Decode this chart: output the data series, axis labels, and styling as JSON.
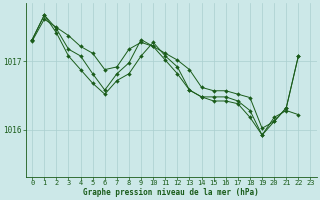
{
  "title": "Graphe pression niveau de la mer (hPa)",
  "background_color": "#cce8e8",
  "grid_color": "#aacfcf",
  "line_color": "#1a5c1a",
  "xlim": [
    -0.5,
    23.5
  ],
  "ylim": [
    1015.3,
    1017.85
  ],
  "yticks": [
    1016,
    1017
  ],
  "xticks": [
    0,
    1,
    2,
    3,
    4,
    5,
    6,
    7,
    8,
    9,
    10,
    11,
    12,
    13,
    14,
    15,
    16,
    17,
    18,
    19,
    20,
    21,
    22,
    23
  ],
  "series": [
    [
      1017.3,
      1017.62,
      1017.5,
      1017.38,
      1017.22,
      1017.12,
      1016.88,
      1016.92,
      1017.18,
      1017.28,
      1017.22,
      1017.12,
      1017.02,
      1016.88,
      1016.62,
      1016.57,
      1016.57,
      1016.52,
      1016.47,
      1016.02,
      1016.12,
      1016.32,
      1017.08,
      null
    ],
    [
      1017.32,
      1017.68,
      1017.48,
      1017.18,
      1017.08,
      1016.82,
      1016.58,
      1016.82,
      1016.98,
      1017.32,
      1017.22,
      1017.02,
      1016.82,
      1016.58,
      1016.48,
      1016.48,
      1016.48,
      1016.42,
      1016.28,
      1015.92,
      1016.12,
      1016.32,
      1017.08,
      null
    ],
    [
      1017.32,
      1017.68,
      1017.42,
      1017.08,
      1016.88,
      1016.68,
      1016.52,
      1016.72,
      1016.82,
      1017.08,
      1017.28,
      1017.08,
      1016.92,
      1016.58,
      1016.48,
      1016.42,
      1016.42,
      1016.38,
      1016.18,
      1015.92,
      1016.18,
      1016.28,
      1016.22,
      null
    ]
  ]
}
